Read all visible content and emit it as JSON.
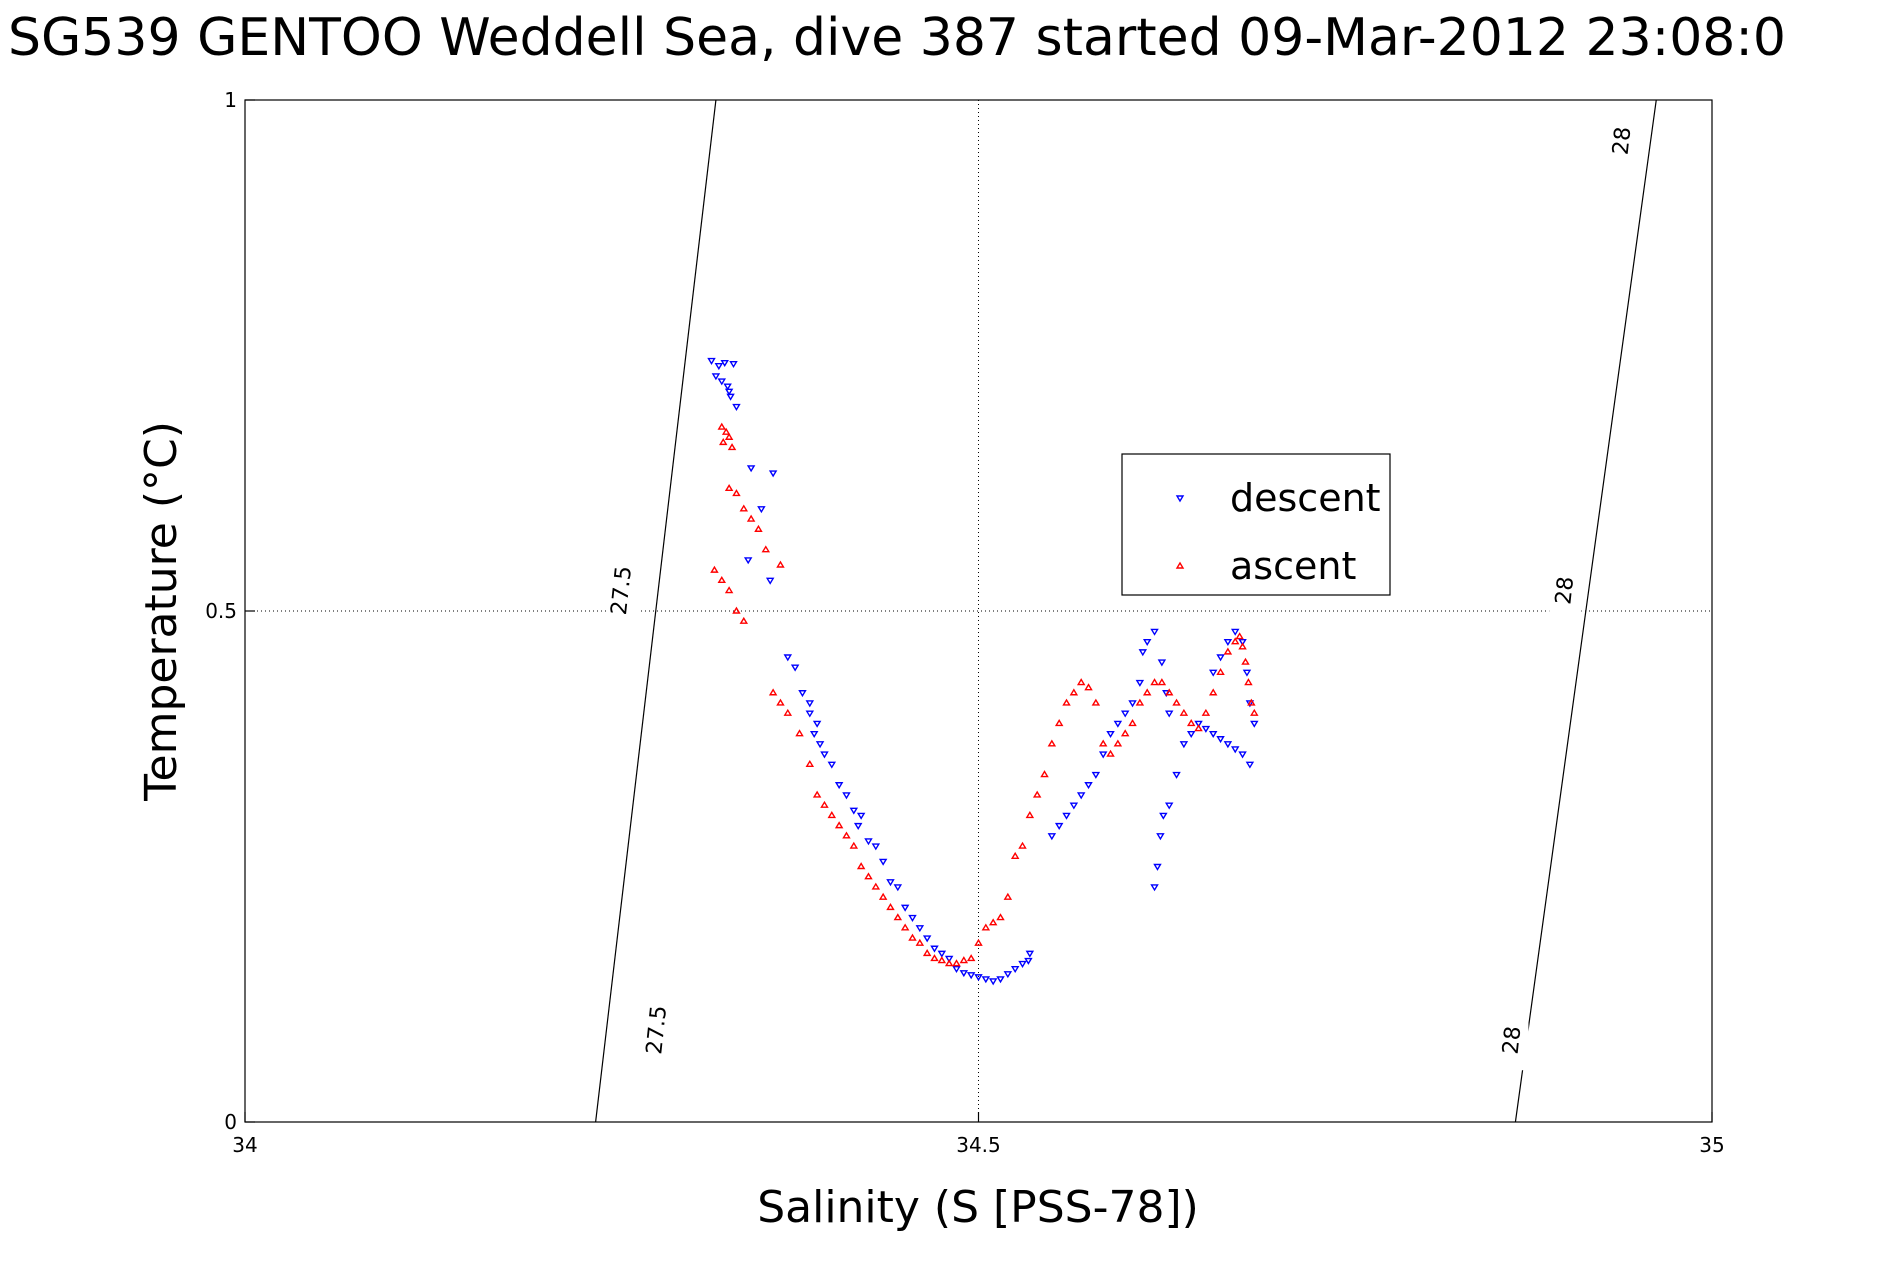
{
  "title": "SG539 GENTOO Weddell Sea, dive 387 started 09-Mar-2012 23:08:0",
  "chart_data": {
    "type": "scatter",
    "title": "SG539 GENTOO Weddell Sea, dive 387 started 09-Mar-2012 23:08:0",
    "xlabel": "Salinity (S [PSS-78])",
    "ylabel": "Temperature (°C)",
    "xlim": [
      34,
      35
    ],
    "ylim": [
      0,
      1
    ],
    "xticks": [
      34,
      34.5,
      35
    ],
    "xtick_labels": [
      "34",
      "34.5",
      "35"
    ],
    "yticks": [
      0,
      0.5,
      1
    ],
    "ytick_labels": [
      "0",
      "0.5",
      "1"
    ],
    "grid": true,
    "legend": {
      "position": "center-right",
      "entries": [
        "descent",
        "ascent"
      ]
    },
    "contours": [
      {
        "label": "27.5",
        "points": [
          [
            34.239,
            0.0
          ],
          [
            34.321,
            1.0
          ]
        ]
      },
      {
        "label": "28",
        "points": [
          [
            34.866,
            0.0
          ],
          [
            34.962,
            1.0
          ]
        ]
      }
    ],
    "contour_labels": [
      {
        "text": "27.5",
        "s": 34.257,
        "t": 0.52
      },
      {
        "text": "27.5",
        "s": 34.281,
        "t": 0.09
      },
      {
        "text": "28",
        "s": 34.9,
        "t": 0.52
      },
      {
        "text": "28",
        "s": 34.939,
        "t": 0.96
      },
      {
        "text": "28",
        "s": 34.864,
        "t": 0.08
      }
    ],
    "series": [
      {
        "name": "descent",
        "color": "#0000ff",
        "marker": "triangle-down",
        "points": [
          [
            34.318,
            0.745
          ],
          [
            34.323,
            0.74
          ],
          [
            34.327,
            0.743
          ],
          [
            34.333,
            0.742
          ],
          [
            34.321,
            0.73
          ],
          [
            34.325,
            0.725
          ],
          [
            34.329,
            0.72
          ],
          [
            34.331,
            0.71
          ],
          [
            34.335,
            0.7
          ],
          [
            34.33,
            0.715
          ],
          [
            34.345,
            0.64
          ],
          [
            34.36,
            0.635
          ],
          [
            34.352,
            0.6
          ],
          [
            34.343,
            0.55
          ],
          [
            34.358,
            0.53
          ],
          [
            34.37,
            0.455
          ],
          [
            34.375,
            0.445
          ],
          [
            34.38,
            0.42
          ],
          [
            34.385,
            0.41
          ],
          [
            34.385,
            0.4
          ],
          [
            34.39,
            0.39
          ],
          [
            34.388,
            0.38
          ],
          [
            34.392,
            0.37
          ],
          [
            34.395,
            0.36
          ],
          [
            34.4,
            0.35
          ],
          [
            34.405,
            0.33
          ],
          [
            34.41,
            0.32
          ],
          [
            34.415,
            0.305
          ],
          [
            34.42,
            0.3
          ],
          [
            34.418,
            0.29
          ],
          [
            34.425,
            0.275
          ],
          [
            34.43,
            0.27
          ],
          [
            34.435,
            0.255
          ],
          [
            34.44,
            0.235
          ],
          [
            34.445,
            0.23
          ],
          [
            34.45,
            0.21
          ],
          [
            34.455,
            0.2
          ],
          [
            34.46,
            0.19
          ],
          [
            34.465,
            0.18
          ],
          [
            34.47,
            0.17
          ],
          [
            34.475,
            0.165
          ],
          [
            34.48,
            0.16
          ],
          [
            34.485,
            0.15
          ],
          [
            34.49,
            0.146
          ],
          [
            34.495,
            0.144
          ],
          [
            34.5,
            0.142
          ],
          [
            34.505,
            0.14
          ],
          [
            34.51,
            0.138
          ],
          [
            34.515,
            0.14
          ],
          [
            34.52,
            0.145
          ],
          [
            34.525,
            0.15
          ],
          [
            34.53,
            0.155
          ],
          [
            34.534,
            0.158
          ],
          [
            34.535,
            0.165
          ],
          [
            34.55,
            0.28
          ],
          [
            34.555,
            0.29
          ],
          [
            34.56,
            0.3
          ],
          [
            34.565,
            0.31
          ],
          [
            34.57,
            0.32
          ],
          [
            34.575,
            0.33
          ],
          [
            34.58,
            0.34
          ],
          [
            34.585,
            0.36
          ],
          [
            34.59,
            0.38
          ],
          [
            34.595,
            0.39
          ],
          [
            34.6,
            0.4
          ],
          [
            34.605,
            0.41
          ],
          [
            34.61,
            0.43
          ],
          [
            34.612,
            0.46
          ],
          [
            34.615,
            0.47
          ],
          [
            34.62,
            0.48
          ],
          [
            34.625,
            0.45
          ],
          [
            34.628,
            0.42
          ],
          [
            34.63,
            0.4
          ],
          [
            34.626,
            0.3
          ],
          [
            34.624,
            0.28
          ],
          [
            34.622,
            0.25
          ],
          [
            34.62,
            0.23
          ],
          [
            34.63,
            0.31
          ],
          [
            34.635,
            0.34
          ],
          [
            34.64,
            0.37
          ],
          [
            34.645,
            0.38
          ],
          [
            34.65,
            0.39
          ],
          [
            34.655,
            0.385
          ],
          [
            34.66,
            0.38
          ],
          [
            34.665,
            0.375
          ],
          [
            34.67,
            0.37
          ],
          [
            34.675,
            0.365
          ],
          [
            34.68,
            0.36
          ],
          [
            34.685,
            0.35
          ],
          [
            34.66,
            0.44
          ],
          [
            34.665,
            0.455
          ],
          [
            34.67,
            0.47
          ],
          [
            34.675,
            0.48
          ],
          [
            34.68,
            0.47
          ],
          [
            34.683,
            0.44
          ],
          [
            34.685,
            0.41
          ],
          [
            34.688,
            0.39
          ]
        ]
      },
      {
        "name": "ascent",
        "color": "#ff0000",
        "marker": "triangle-up",
        "points": [
          [
            34.325,
            0.68
          ],
          [
            34.328,
            0.675
          ],
          [
            34.33,
            0.67
          ],
          [
            34.332,
            0.66
          ],
          [
            34.326,
            0.665
          ],
          [
            34.33,
            0.62
          ],
          [
            34.335,
            0.615
          ],
          [
            34.34,
            0.6
          ],
          [
            34.345,
            0.59
          ],
          [
            34.35,
            0.58
          ],
          [
            34.32,
            0.54
          ],
          [
            34.325,
            0.53
          ],
          [
            34.33,
            0.52
          ],
          [
            34.335,
            0.5
          ],
          [
            34.34,
            0.49
          ],
          [
            34.355,
            0.56
          ],
          [
            34.365,
            0.545
          ],
          [
            34.36,
            0.42
          ],
          [
            34.365,
            0.41
          ],
          [
            34.37,
            0.4
          ],
          [
            34.378,
            0.38
          ],
          [
            34.385,
            0.35
          ],
          [
            34.39,
            0.32
          ],
          [
            34.395,
            0.31
          ],
          [
            34.4,
            0.3
          ],
          [
            34.405,
            0.29
          ],
          [
            34.41,
            0.28
          ],
          [
            34.415,
            0.27
          ],
          [
            34.42,
            0.25
          ],
          [
            34.425,
            0.24
          ],
          [
            34.43,
            0.23
          ],
          [
            34.435,
            0.22
          ],
          [
            34.44,
            0.21
          ],
          [
            34.445,
            0.2
          ],
          [
            34.45,
            0.19
          ],
          [
            34.455,
            0.18
          ],
          [
            34.46,
            0.175
          ],
          [
            34.465,
            0.165
          ],
          [
            34.47,
            0.16
          ],
          [
            34.475,
            0.158
          ],
          [
            34.48,
            0.155
          ],
          [
            34.485,
            0.155
          ],
          [
            34.49,
            0.158
          ],
          [
            34.495,
            0.16
          ],
          [
            34.5,
            0.175
          ],
          [
            34.505,
            0.19
          ],
          [
            34.51,
            0.195
          ],
          [
            34.515,
            0.2
          ],
          [
            34.52,
            0.22
          ],
          [
            34.525,
            0.26
          ],
          [
            34.53,
            0.27
          ],
          [
            34.535,
            0.3
          ],
          [
            34.54,
            0.32
          ],
          [
            34.545,
            0.34
          ],
          [
            34.55,
            0.37
          ],
          [
            34.555,
            0.39
          ],
          [
            34.56,
            0.41
          ],
          [
            34.565,
            0.42
          ],
          [
            34.57,
            0.43
          ],
          [
            34.575,
            0.425
          ],
          [
            34.58,
            0.41
          ],
          [
            34.585,
            0.37
          ],
          [
            34.59,
            0.36
          ],
          [
            34.595,
            0.37
          ],
          [
            34.6,
            0.38
          ],
          [
            34.605,
            0.39
          ],
          [
            34.61,
            0.41
          ],
          [
            34.615,
            0.42
          ],
          [
            34.62,
            0.43
          ],
          [
            34.625,
            0.43
          ],
          [
            34.63,
            0.42
          ],
          [
            34.635,
            0.41
          ],
          [
            34.64,
            0.4
          ],
          [
            34.645,
            0.39
          ],
          [
            34.65,
            0.385
          ],
          [
            34.655,
            0.4
          ],
          [
            34.66,
            0.42
          ],
          [
            34.665,
            0.44
          ],
          [
            34.67,
            0.46
          ],
          [
            34.675,
            0.47
          ],
          [
            34.678,
            0.475
          ],
          [
            34.68,
            0.465
          ],
          [
            34.682,
            0.45
          ],
          [
            34.684,
            0.43
          ],
          [
            34.686,
            0.41
          ],
          [
            34.688,
            0.4
          ]
        ]
      }
    ]
  }
}
